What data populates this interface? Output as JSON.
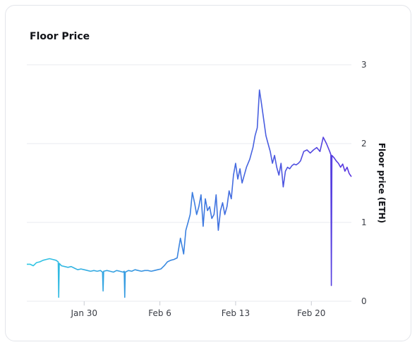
{
  "chart_data": {
    "type": "line",
    "title": "Floor Price",
    "ylabel": "Floor price (ETH)",
    "xlabel": "",
    "ylim": [
      0,
      3
    ],
    "y_ticks": [
      "0",
      "1",
      "2",
      "3"
    ],
    "x_ticks": [
      "Jan 30",
      "Feb 6",
      "Feb 13",
      "Feb 20"
    ],
    "x_tick_days": [
      30,
      37,
      44,
      51
    ],
    "xlim_days": [
      24.7,
      54.7
    ],
    "grid": true,
    "axis_position": "right",
    "colors": [
      "#2ec8e3",
      "#3b7fe0",
      "#5a36e0"
    ],
    "series": [
      {
        "x": [
          24.7,
          25.0,
          25.3,
          25.6,
          25.9,
          26.2,
          26.5,
          26.8,
          27.1,
          27.4,
          27.6,
          27.65,
          27.7,
          27.9,
          28.2,
          28.5,
          28.8,
          29.1,
          29.4,
          29.7,
          30.0,
          30.3,
          30.6,
          30.9,
          31.2,
          31.5,
          31.7,
          31.75,
          31.8,
          32.1,
          32.4,
          32.7,
          33.0,
          33.3,
          33.6,
          33.7,
          33.75,
          33.8,
          34.1,
          34.4,
          34.7,
          35.0,
          35.3,
          35.6,
          35.9,
          36.2,
          36.5,
          36.8,
          37.1,
          37.4,
          37.7,
          38.0,
          38.3,
          38.6,
          38.9,
          39.2,
          39.4,
          39.6,
          39.8,
          40.0,
          40.2,
          40.4,
          40.6,
          40.8,
          41.0,
          41.2,
          41.4,
          41.6,
          41.8,
          42.0,
          42.2,
          42.4,
          42.6,
          42.8,
          43.0,
          43.2,
          43.4,
          43.6,
          43.8,
          44.0,
          44.2,
          44.4,
          44.6,
          44.8,
          45.0,
          45.3,
          45.6,
          45.8,
          46.0,
          46.2,
          46.4,
          46.6,
          46.8,
          47.0,
          47.2,
          47.4,
          47.6,
          47.8,
          48.0,
          48.2,
          48.4,
          48.6,
          48.8,
          49.0,
          49.2,
          49.4,
          49.6,
          49.8,
          50.0,
          50.3,
          50.6,
          50.9,
          51.2,
          51.5,
          51.8,
          52.1,
          52.4,
          52.7,
          52.8,
          52.85,
          52.9,
          53.1,
          53.3,
          53.5,
          53.7,
          53.9,
          54.1,
          54.3,
          54.5,
          54.7
        ],
        "y": [
          0.47,
          0.47,
          0.45,
          0.49,
          0.5,
          0.52,
          0.53,
          0.54,
          0.53,
          0.52,
          0.5,
          0.05,
          0.48,
          0.45,
          0.44,
          0.43,
          0.44,
          0.42,
          0.4,
          0.41,
          0.4,
          0.39,
          0.38,
          0.39,
          0.38,
          0.39,
          0.37,
          0.13,
          0.38,
          0.39,
          0.38,
          0.37,
          0.39,
          0.38,
          0.37,
          0.38,
          0.05,
          0.37,
          0.39,
          0.38,
          0.4,
          0.39,
          0.38,
          0.39,
          0.39,
          0.38,
          0.39,
          0.4,
          0.41,
          0.45,
          0.5,
          0.52,
          0.53,
          0.55,
          0.8,
          0.6,
          0.9,
          1.0,
          1.1,
          1.38,
          1.25,
          1.1,
          1.2,
          1.35,
          0.95,
          1.3,
          1.15,
          1.2,
          1.05,
          1.1,
          1.35,
          0.9,
          1.15,
          1.25,
          1.1,
          1.2,
          1.4,
          1.3,
          1.6,
          1.75,
          1.55,
          1.68,
          1.5,
          1.6,
          1.7,
          1.8,
          1.95,
          2.1,
          2.2,
          2.68,
          2.5,
          2.3,
          2.1,
          2.0,
          1.9,
          1.75,
          1.85,
          1.7,
          1.6,
          1.75,
          1.45,
          1.65,
          1.7,
          1.68,
          1.72,
          1.74,
          1.73,
          1.75,
          1.78,
          1.9,
          1.92,
          1.88,
          1.92,
          1.95,
          1.9,
          2.08,
          2.0,
          1.9,
          1.86,
          0.2,
          1.85,
          1.82,
          1.78,
          1.75,
          1.7,
          1.74,
          1.65,
          1.7,
          1.62,
          1.58
        ]
      }
    ]
  }
}
